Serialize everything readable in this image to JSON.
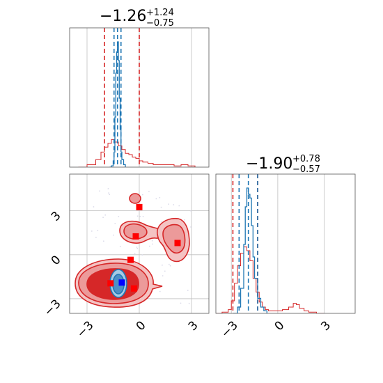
{
  "chart_data": [
    {
      "panel": "marginal-param-1",
      "type": "area",
      "title": {
        "median": "−1.26",
        "upper": "+1.24",
        "lower": "−0.75"
      },
      "xlim": [
        -4.0,
        4.0
      ],
      "xticks": [
        -3,
        0,
        3
      ],
      "grid": true,
      "series": [
        {
          "color": "#d62728",
          "x": [
            -3.5,
            -3.0,
            -2.5,
            -2.2,
            -2.0,
            -1.8,
            -1.6,
            -1.4,
            -1.2,
            -1.0,
            -0.8,
            -0.6,
            -0.4,
            -0.2,
            0.0,
            0.2,
            0.5,
            0.8,
            1.2,
            1.6,
            2.0,
            2.4,
            2.8,
            3.2
          ],
          "values": [
            0.0,
            0.02,
            0.06,
            0.12,
            0.16,
            0.19,
            0.22,
            0.2,
            0.17,
            0.14,
            0.11,
            0.1,
            0.08,
            0.07,
            0.05,
            0.04,
            0.03,
            0.02,
            0.02,
            0.02,
            0.01,
            0.02,
            0.01,
            0.0
          ]
        },
        {
          "color": "#1f77b4",
          "x": [
            -1.7,
            -1.6,
            -1.5,
            -1.45,
            -1.4,
            -1.35,
            -1.3,
            -1.25,
            -1.2,
            -1.15,
            -1.1,
            -1.05,
            -1.0,
            -0.9,
            -0.8
          ],
          "values": [
            0.0,
            0.01,
            0.05,
            0.12,
            0.4,
            0.75,
            0.92,
            1.0,
            0.85,
            0.55,
            0.3,
            0.12,
            0.06,
            0.02,
            0.0
          ]
        }
      ],
      "quantile_lines": [
        {
          "color": "#d62728",
          "x": [
            -2.0,
            0.0
          ]
        },
        {
          "color": "#1f77b4",
          "x": [
            -1.45,
            -1.25,
            -1.05
          ]
        }
      ]
    },
    {
      "panel": "joint-param-1-param-2",
      "type": "scatter",
      "xlim": [
        -4.0,
        4.0
      ],
      "ylim": [
        -4.0,
        5.5
      ],
      "xticks": [
        -3,
        0,
        3
      ],
      "yticks": [
        -3,
        0,
        3
      ],
      "grid": true,
      "red_markers": [
        {
          "x": 0.0,
          "y": 3.25
        },
        {
          "x": -0.2,
          "y": 1.25
        },
        {
          "x": 2.2,
          "y": 0.8
        },
        {
          "x": -0.5,
          "y": -0.35
        },
        {
          "x": -1.65,
          "y": -1.95
        },
        {
          "x": -0.3,
          "y": -2.3
        }
      ],
      "blue_marker": {
        "x": -1.0,
        "y": -1.9
      },
      "red_density_levels": 3,
      "blue_density_levels": 2
    },
    {
      "panel": "marginal-param-2",
      "type": "area",
      "title": {
        "median": "−1.90",
        "upper": "+0.78",
        "lower": "−0.57"
      },
      "xlim": [
        -4.0,
        5.0
      ],
      "xticks": [
        -3,
        0,
        3
      ],
      "grid": true,
      "series": [
        {
          "color": "#d62728",
          "x": [
            -4.0,
            -3.6,
            -3.2,
            -3.0,
            -2.8,
            -2.6,
            -2.4,
            -2.2,
            -2.0,
            -1.8,
            -1.6,
            -1.4,
            -1.2,
            -1.0,
            -0.8,
            -0.6,
            -0.3,
            0.0,
            0.3,
            0.7,
            1.0,
            1.2,
            1.4,
            1.7,
            2.0,
            2.5,
            3.0
          ],
          "values": [
            0.0,
            0.01,
            0.03,
            0.1,
            0.24,
            0.38,
            0.48,
            0.53,
            0.5,
            0.42,
            0.28,
            0.17,
            0.09,
            0.05,
            0.03,
            0.02,
            0.02,
            0.02,
            0.03,
            0.05,
            0.08,
            0.07,
            0.04,
            0.02,
            0.01,
            0.0,
            0.0
          ]
        },
        {
          "color": "#1f77b4",
          "x": [
            -2.9,
            -2.6,
            -2.4,
            -2.2,
            -2.1,
            -2.0,
            -1.9,
            -1.8,
            -1.7,
            -1.6,
            -1.5,
            -1.3,
            -1.1,
            -0.9,
            -0.7
          ],
          "values": [
            0.0,
            0.05,
            0.2,
            0.55,
            0.85,
            1.0,
            0.95,
            0.92,
            0.7,
            0.45,
            0.28,
            0.12,
            0.05,
            0.02,
            0.0
          ]
        }
      ],
      "quantile_lines": [
        {
          "color": "#d62728",
          "x": [
            -2.9,
            -1.3
          ]
        },
        {
          "color": "#1f77b4",
          "x": [
            -2.5,
            -1.9,
            -1.3
          ]
        }
      ]
    }
  ]
}
